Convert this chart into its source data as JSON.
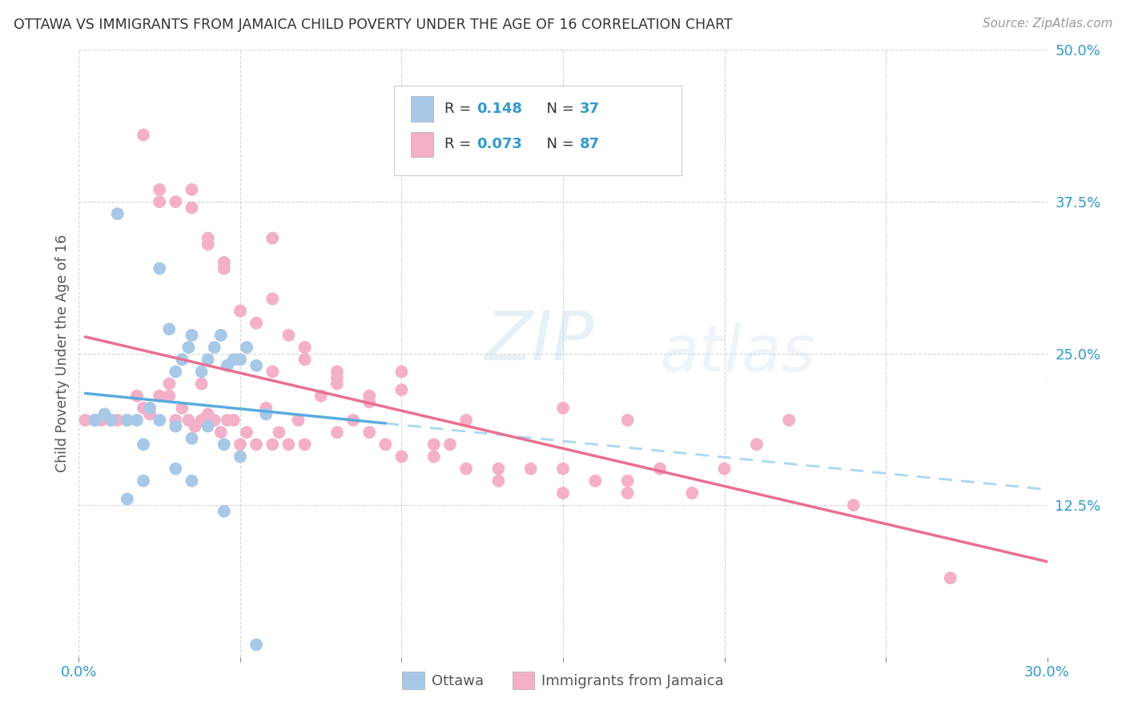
{
  "title": "OTTAWA VS IMMIGRANTS FROM JAMAICA CHILD POVERTY UNDER THE AGE OF 16 CORRELATION CHART",
  "source": "Source: ZipAtlas.com",
  "ylabel": "Child Poverty Under the Age of 16",
  "xlim": [
    0.0,
    0.3
  ],
  "ylim": [
    0.0,
    0.5
  ],
  "xticks": [
    0.0,
    0.05,
    0.1,
    0.15,
    0.2,
    0.25,
    0.3
  ],
  "xtick_labels": [
    "0.0%",
    "",
    "",
    "",
    "",
    "",
    "30.0%"
  ],
  "yticks": [
    0.0,
    0.125,
    0.25,
    0.375,
    0.5
  ],
  "ytick_labels": [
    "",
    "12.5%",
    "25.0%",
    "37.5%",
    "50.0%"
  ],
  "ottawa_color": "#a8c8e8",
  "ottawa_line_color": "#5aabdc",
  "ottawa_dash_color": "#a8d8f0",
  "jamaica_color": "#f4b0c8",
  "jamaica_line_color": "#e87090",
  "ottawa_R": "0.148",
  "ottawa_N": "37",
  "jamaica_R": "0.073",
  "jamaica_N": "87",
  "watermark": "ZIPatlas",
  "legend_labels": [
    "Ottawa",
    "Immigrants from Jamaica"
  ],
  "ottawa_scatter_x": [
    0.005,
    0.012,
    0.018,
    0.022,
    0.025,
    0.028,
    0.03,
    0.032,
    0.034,
    0.035,
    0.038,
    0.04,
    0.042,
    0.044,
    0.046,
    0.048,
    0.05,
    0.052,
    0.055,
    0.058,
    0.005,
    0.01,
    0.015,
    0.02,
    0.025,
    0.03,
    0.035,
    0.04,
    0.045,
    0.05,
    0.008,
    0.015,
    0.02,
    0.03,
    0.035,
    0.045,
    0.055
  ],
  "ottawa_scatter_y": [
    0.195,
    0.365,
    0.195,
    0.205,
    0.32,
    0.27,
    0.19,
    0.245,
    0.255,
    0.265,
    0.235,
    0.245,
    0.255,
    0.265,
    0.24,
    0.245,
    0.245,
    0.255,
    0.24,
    0.2,
    0.195,
    0.195,
    0.195,
    0.175,
    0.195,
    0.235,
    0.18,
    0.19,
    0.175,
    0.165,
    0.2,
    0.13,
    0.145,
    0.155,
    0.145,
    0.12,
    0.01
  ],
  "jamaica_scatter_x": [
    0.002,
    0.005,
    0.007,
    0.01,
    0.012,
    0.015,
    0.018,
    0.02,
    0.022,
    0.025,
    0.028,
    0.03,
    0.032,
    0.034,
    0.036,
    0.038,
    0.04,
    0.042,
    0.044,
    0.046,
    0.048,
    0.05,
    0.052,
    0.055,
    0.058,
    0.06,
    0.062,
    0.065,
    0.068,
    0.07,
    0.075,
    0.08,
    0.085,
    0.09,
    0.095,
    0.1,
    0.11,
    0.12,
    0.13,
    0.14,
    0.15,
    0.16,
    0.17,
    0.18,
    0.19,
    0.2,
    0.21,
    0.22,
    0.24,
    0.27,
    0.02,
    0.025,
    0.03,
    0.035,
    0.04,
    0.045,
    0.05,
    0.055,
    0.06,
    0.065,
    0.07,
    0.08,
    0.09,
    0.1,
    0.11,
    0.12,
    0.025,
    0.035,
    0.04,
    0.045,
    0.05,
    0.06,
    0.07,
    0.08,
    0.09,
    0.1,
    0.115,
    0.13,
    0.15,
    0.17,
    0.028,
    0.038,
    0.06,
    0.07,
    0.08,
    0.15,
    0.17
  ],
  "jamaica_scatter_y": [
    0.195,
    0.195,
    0.195,
    0.195,
    0.195,
    0.195,
    0.215,
    0.205,
    0.2,
    0.215,
    0.215,
    0.195,
    0.205,
    0.195,
    0.19,
    0.195,
    0.2,
    0.195,
    0.185,
    0.195,
    0.195,
    0.175,
    0.185,
    0.175,
    0.205,
    0.175,
    0.185,
    0.175,
    0.195,
    0.175,
    0.215,
    0.185,
    0.195,
    0.185,
    0.175,
    0.165,
    0.175,
    0.155,
    0.145,
    0.155,
    0.155,
    0.145,
    0.145,
    0.155,
    0.135,
    0.155,
    0.175,
    0.195,
    0.125,
    0.065,
    0.43,
    0.375,
    0.375,
    0.37,
    0.345,
    0.325,
    0.285,
    0.275,
    0.295,
    0.265,
    0.255,
    0.225,
    0.215,
    0.235,
    0.165,
    0.195,
    0.385,
    0.385,
    0.34,
    0.32,
    0.285,
    0.235,
    0.245,
    0.23,
    0.21,
    0.22,
    0.175,
    0.155,
    0.135,
    0.135,
    0.225,
    0.225,
    0.345,
    0.255,
    0.235,
    0.205,
    0.195
  ]
}
